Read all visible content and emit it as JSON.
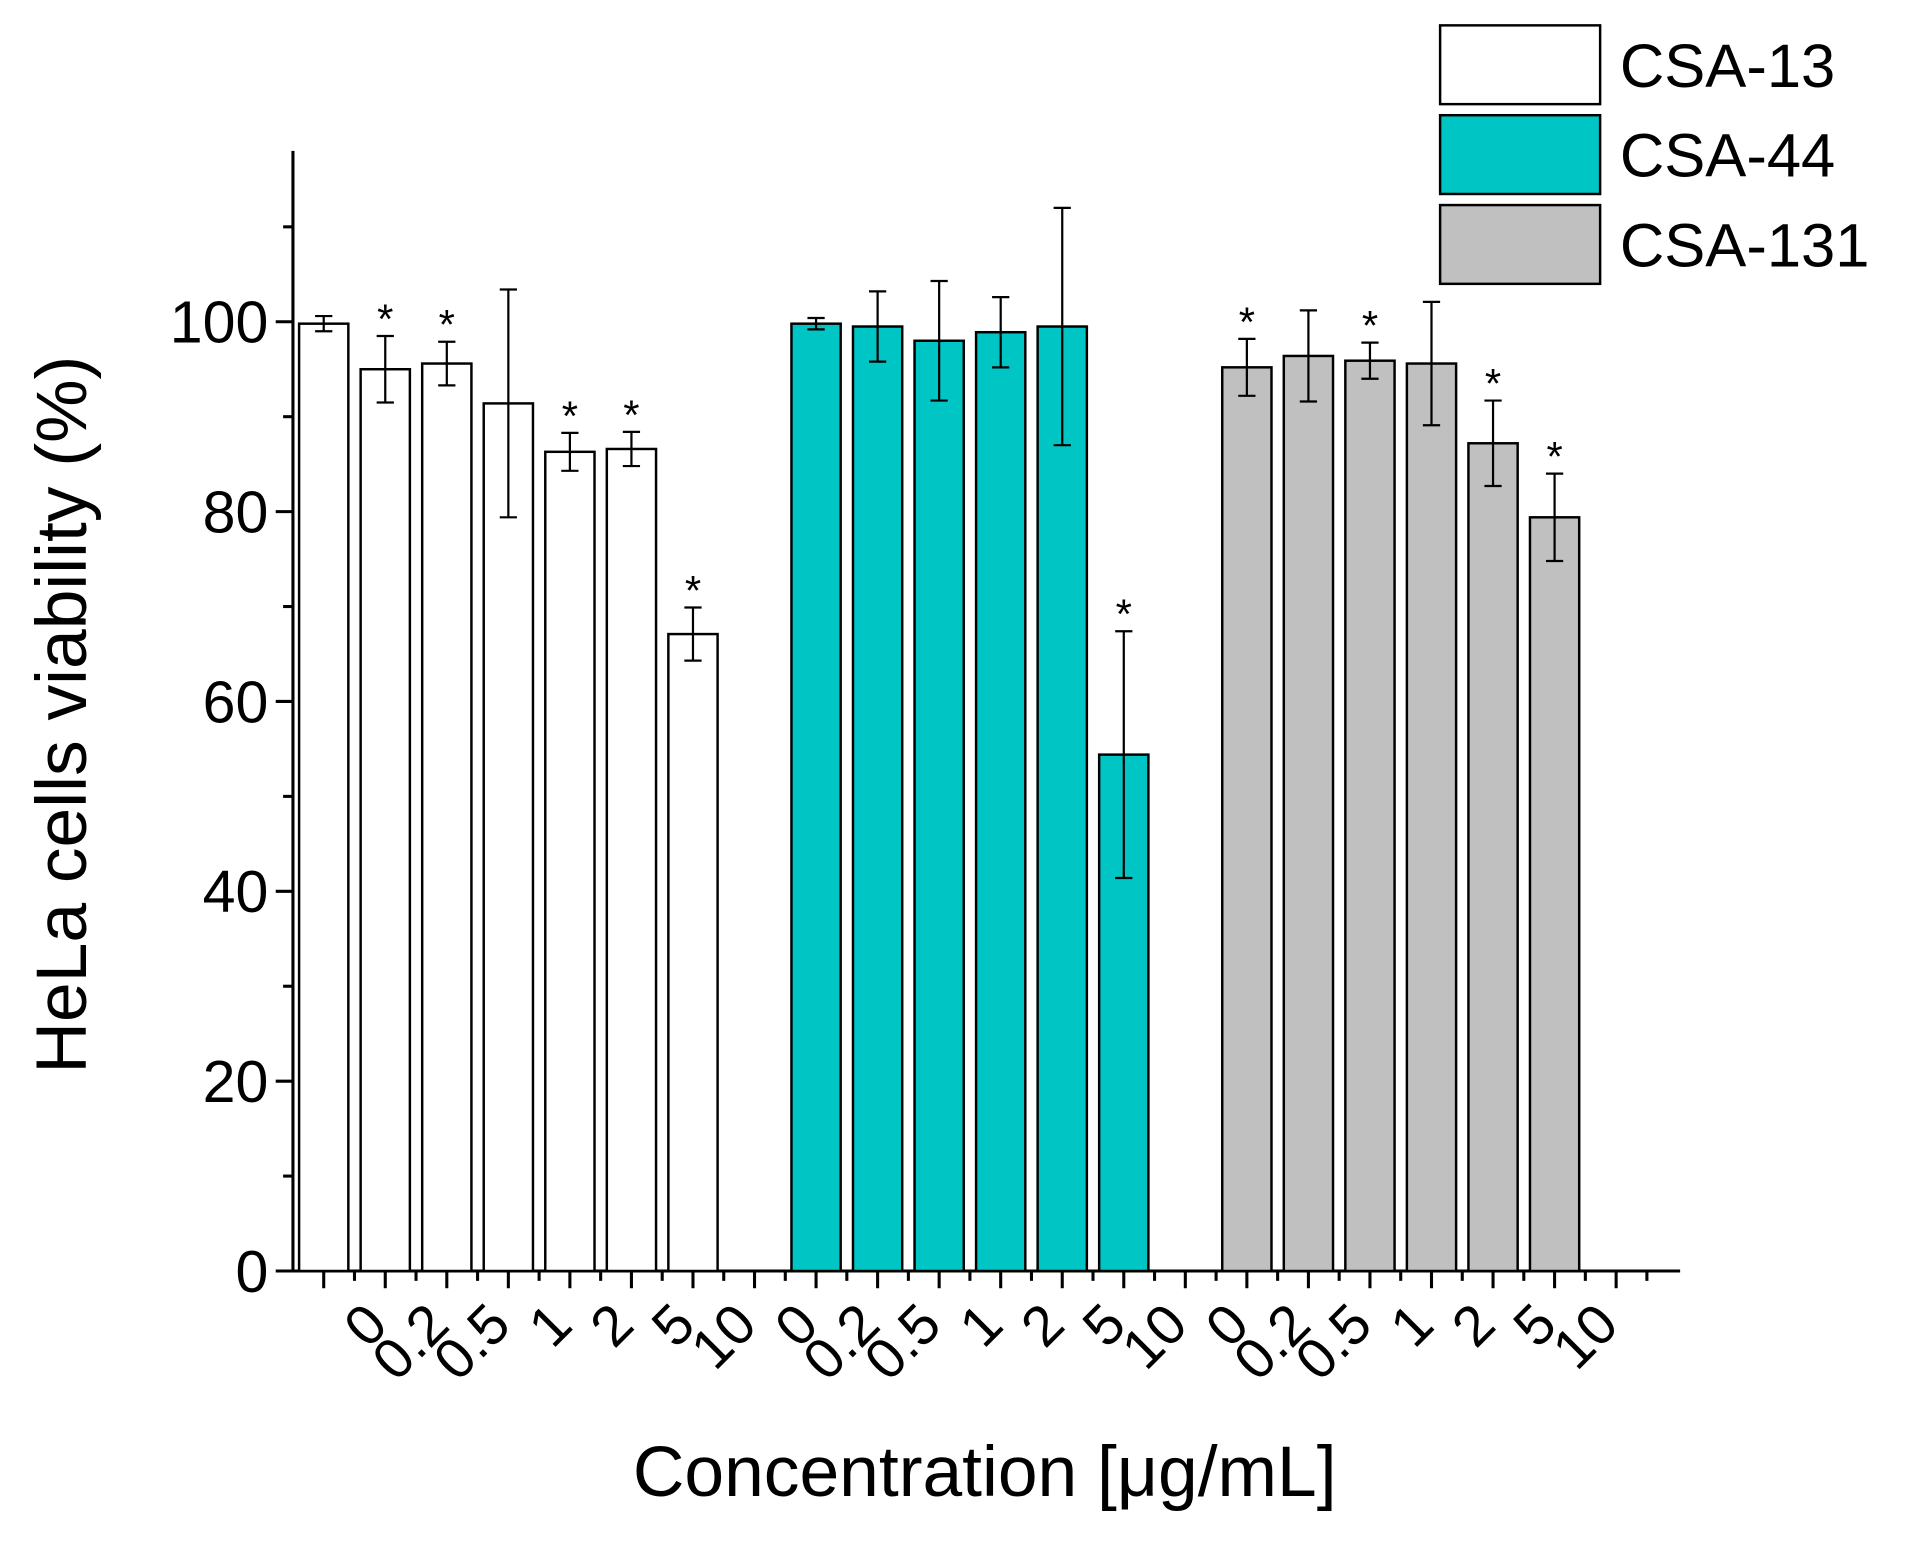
{
  "chart_data": {
    "type": "bar",
    "x_label": "Concentration [μg/mL]",
    "y_label": "HeLa cells viability (%)",
    "categories": [
      null,
      "0",
      "0.2",
      "0.5",
      "1",
      "2",
      "5",
      "10",
      "0",
      "0.2",
      "0.5",
      "1",
      "2",
      "5",
      "10",
      "0",
      "0.2",
      "0.5",
      "1",
      "2",
      "5",
      "10"
    ],
    "series": [
      {
        "name": "CSA-13",
        "color": "#ffffff",
        "values": [
          99.8,
          95,
          95.6,
          91.4,
          86.3,
          86.6,
          67.1,
          null,
          null,
          null,
          null,
          null,
          null,
          null,
          null,
          null,
          null,
          null,
          null,
          null,
          null,
          null
        ],
        "errors": [
          0.8,
          3.5,
          2.3,
          12,
          2,
          1.8,
          2.8,
          null,
          null,
          null,
          null,
          null,
          null,
          null,
          null,
          null,
          null,
          null,
          null,
          null,
          null,
          null
        ],
        "significance": [
          null,
          "*",
          "*",
          null,
          "*",
          "*",
          "*",
          null,
          null,
          null,
          null,
          null,
          null,
          null,
          null,
          null,
          null,
          null,
          null,
          null,
          null,
          null
        ]
      },
      {
        "name": "CSA-44",
        "color": "#00c5c5",
        "values": [
          null,
          null,
          null,
          null,
          null,
          null,
          null,
          null,
          99.8,
          99.5,
          98,
          98.9,
          99.5,
          54.4,
          null,
          null,
          null,
          null,
          null,
          null,
          null,
          null
        ],
        "errors": [
          null,
          null,
          null,
          null,
          null,
          null,
          null,
          null,
          0.6,
          3.7,
          6.3,
          3.7,
          12.5,
          13,
          null,
          null,
          null,
          null,
          null,
          null,
          null,
          null
        ],
        "significance": [
          null,
          null,
          null,
          null,
          null,
          null,
          null,
          null,
          null,
          null,
          null,
          null,
          null,
          "*",
          null,
          null,
          null,
          null,
          null,
          null,
          null,
          null
        ]
      },
      {
        "name": "CSA-131",
        "color": "#c0c0c0",
        "values": [
          null,
          null,
          null,
          null,
          null,
          null,
          null,
          null,
          null,
          null,
          null,
          null,
          null,
          null,
          null,
          95.2,
          96.4,
          95.9,
          95.6,
          87.2,
          79.4,
          null
        ],
        "errors": [
          null,
          null,
          null,
          null,
          null,
          null,
          null,
          null,
          null,
          null,
          null,
          null,
          null,
          null,
          null,
          3,
          4.8,
          1.9,
          6.5,
          4.5,
          4.6,
          null
        ],
        "significance": [
          null,
          null,
          null,
          null,
          null,
          null,
          null,
          null,
          null,
          null,
          null,
          null,
          null,
          null,
          null,
          "*",
          null,
          "*",
          null,
          "*",
          "*",
          null
        ]
      }
    ],
    "ylim": [
      0,
      118
    ],
    "yticks": [
      0,
      20,
      40,
      60,
      80,
      100
    ],
    "minor_yticks": [
      10,
      30,
      50,
      70,
      90,
      110
    ],
    "legend": "top-right"
  }
}
